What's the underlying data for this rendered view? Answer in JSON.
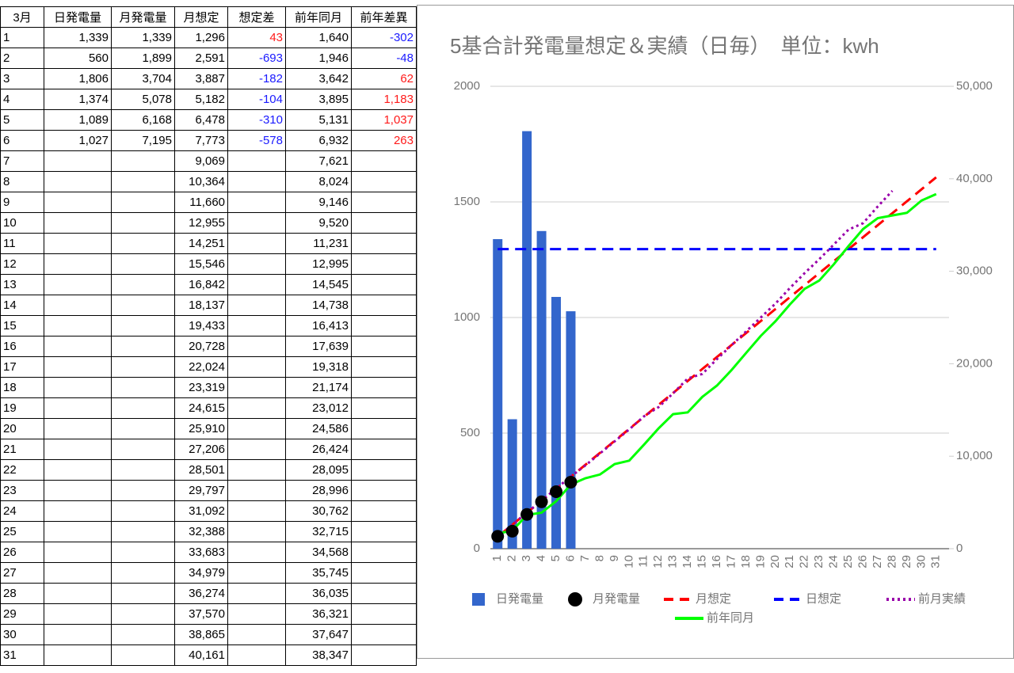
{
  "table": {
    "headers": [
      "3月",
      "日発電量",
      "月発電量",
      "月想定",
      "想定差",
      "前年同月",
      "前年差異"
    ],
    "rows": [
      [
        "1",
        "1,339",
        "1,339",
        "1,296",
        "43",
        "1,640",
        "-302"
      ],
      [
        "2",
        "560",
        "1,899",
        "2,591",
        "-693",
        "1,946",
        "-48"
      ],
      [
        "3",
        "1,806",
        "3,704",
        "3,887",
        "-182",
        "3,642",
        "62"
      ],
      [
        "4",
        "1,374",
        "5,078",
        "5,182",
        "-104",
        "3,895",
        "1,183"
      ],
      [
        "5",
        "1,089",
        "6,168",
        "6,478",
        "-310",
        "5,131",
        "1,037"
      ],
      [
        "6",
        "1,027",
        "7,195",
        "7,773",
        "-578",
        "6,932",
        "263"
      ],
      [
        "7",
        null,
        null,
        "9,069",
        null,
        "7,621",
        null
      ],
      [
        "8",
        null,
        null,
        "10,364",
        null,
        "8,024",
        null
      ],
      [
        "9",
        null,
        null,
        "11,660",
        null,
        "9,146",
        null
      ],
      [
        "10",
        null,
        null,
        "12,955",
        null,
        "9,520",
        null
      ],
      [
        "11",
        null,
        null,
        "14,251",
        null,
        "11,231",
        null
      ],
      [
        "12",
        null,
        null,
        "15,546",
        null,
        "12,995",
        null
      ],
      [
        "13",
        null,
        null,
        "16,842",
        null,
        "14,545",
        null
      ],
      [
        "14",
        null,
        null,
        "18,137",
        null,
        "14,738",
        null
      ],
      [
        "15",
        null,
        null,
        "19,433",
        null,
        "16,413",
        null
      ],
      [
        "16",
        null,
        null,
        "20,728",
        null,
        "17,639",
        null
      ],
      [
        "17",
        null,
        null,
        "22,024",
        null,
        "19,318",
        null
      ],
      [
        "18",
        null,
        null,
        "23,319",
        null,
        "21,174",
        null
      ],
      [
        "19",
        null,
        null,
        "24,615",
        null,
        "23,012",
        null
      ],
      [
        "20",
        null,
        null,
        "25,910",
        null,
        "24,586",
        null
      ],
      [
        "21",
        null,
        null,
        "27,206",
        null,
        "26,424",
        null
      ],
      [
        "22",
        null,
        null,
        "28,501",
        null,
        "28,095",
        null
      ],
      [
        "23",
        null,
        null,
        "29,797",
        null,
        "28,996",
        null
      ],
      [
        "24",
        null,
        null,
        "31,092",
        null,
        "30,762",
        null
      ],
      [
        "25",
        null,
        null,
        "32,388",
        null,
        "32,715",
        null
      ],
      [
        "26",
        null,
        null,
        "33,683",
        null,
        "34,568",
        null
      ],
      [
        "27",
        null,
        null,
        "34,979",
        null,
        "35,745",
        null
      ],
      [
        "28",
        null,
        null,
        "36,274",
        null,
        "36,035",
        null
      ],
      [
        "29",
        null,
        null,
        "37,570",
        null,
        "36,321",
        null
      ],
      [
        "30",
        null,
        null,
        "38,865",
        null,
        "37,647",
        null
      ],
      [
        "31",
        null,
        null,
        "40,161",
        null,
        "38,347",
        null
      ]
    ]
  },
  "chart_data": {
    "type": "combo",
    "title": "5基合計発電量想定＆実績（日毎）　単位：kwh",
    "categories": [
      "1",
      "2",
      "3",
      "4",
      "5",
      "6",
      "7",
      "8",
      "9",
      "10",
      "11",
      "12",
      "13",
      "14",
      "15",
      "16",
      "17",
      "18",
      "19",
      "20",
      "21",
      "22",
      "23",
      "24",
      "25",
      "26",
      "27",
      "28",
      "29",
      "30",
      "31"
    ],
    "ylim": [
      0,
      2000
    ],
    "yticks": [
      0,
      500,
      1000,
      1500,
      2000
    ],
    "y2lim": [
      0,
      50000
    ],
    "y2ticks": [
      {
        "value": 0,
        "label": "0"
      },
      {
        "value": 10000,
        "label": "10,000"
      },
      {
        "value": 20000,
        "label": "20,000"
      },
      {
        "value": 30000,
        "label": "30,000"
      },
      {
        "value": 40000,
        "label": "40,000"
      },
      {
        "value": 50000,
        "label": "50,000"
      }
    ],
    "grid": true,
    "legend": "bottom",
    "series": [
      {
        "name": "日発電量",
        "type": "bar",
        "color": "#3366cc",
        "values": [
          1339,
          560,
          1806,
          1374,
          1089,
          1027,
          null,
          null,
          null,
          null,
          null,
          null,
          null,
          null,
          null,
          null,
          null,
          null,
          null,
          null,
          null,
          null,
          null,
          null,
          null,
          null,
          null,
          null,
          null,
          null,
          null
        ]
      },
      {
        "name": "月発電量",
        "type": "scatter",
        "color": "#000000",
        "axis": "y2",
        "values": [
          1339,
          1899,
          3704,
          5078,
          6168,
          7195,
          null,
          null,
          null,
          null,
          null,
          null,
          null,
          null,
          null,
          null,
          null,
          null,
          null,
          null,
          null,
          null,
          null,
          null,
          null,
          null,
          null,
          null,
          null,
          null,
          null
        ]
      },
      {
        "name": "月想定",
        "type": "line",
        "dash": "dashed",
        "color": "#ff0000",
        "axis": "y2",
        "values": [
          1296,
          2591,
          3887,
          5182,
          6478,
          7773,
          9069,
          10364,
          11660,
          12955,
          14251,
          15546,
          16842,
          18137,
          19433,
          20728,
          22024,
          23319,
          24615,
          25910,
          27206,
          28501,
          29797,
          31092,
          32388,
          33683,
          34979,
          36274,
          37570,
          38865,
          40161
        ]
      },
      {
        "name": "日想定",
        "type": "line",
        "dash": "dashed",
        "color": "#0000ff",
        "values": [
          1296,
          1296,
          1296,
          1296,
          1296,
          1296,
          1296,
          1296,
          1296,
          1296,
          1296,
          1296,
          1296,
          1296,
          1296,
          1296,
          1296,
          1296,
          1296,
          1296,
          1296,
          1296,
          1296,
          1296,
          1296,
          1296,
          1296,
          1296,
          1296,
          1296,
          1296
        ]
      },
      {
        "name": "前月実績",
        "type": "line",
        "dash": "dotted",
        "color": "#9900aa",
        "axis": "y2",
        "values": [
          1300,
          2600,
          3900,
          5200,
          6500,
          7800,
          9000,
          10300,
          11600,
          12900,
          14300,
          15300,
          16800,
          18400,
          18900,
          20500,
          22000,
          23500,
          25000,
          26500,
          28200,
          29800,
          31300,
          32900,
          34500,
          35200,
          37000,
          38700,
          null,
          null,
          null
        ]
      },
      {
        "name": "前年同月",
        "type": "line",
        "color": "#00ff00",
        "axis": "y2",
        "values": [
          1640,
          1946,
          3642,
          3895,
          5131,
          6932,
          7621,
          8024,
          9146,
          9520,
          11231,
          12995,
          14545,
          14738,
          16413,
          17639,
          19318,
          21174,
          23012,
          24586,
          26424,
          28095,
          28996,
          30762,
          32715,
          34568,
          35745,
          36035,
          36321,
          37647,
          38347
        ]
      }
    ]
  }
}
